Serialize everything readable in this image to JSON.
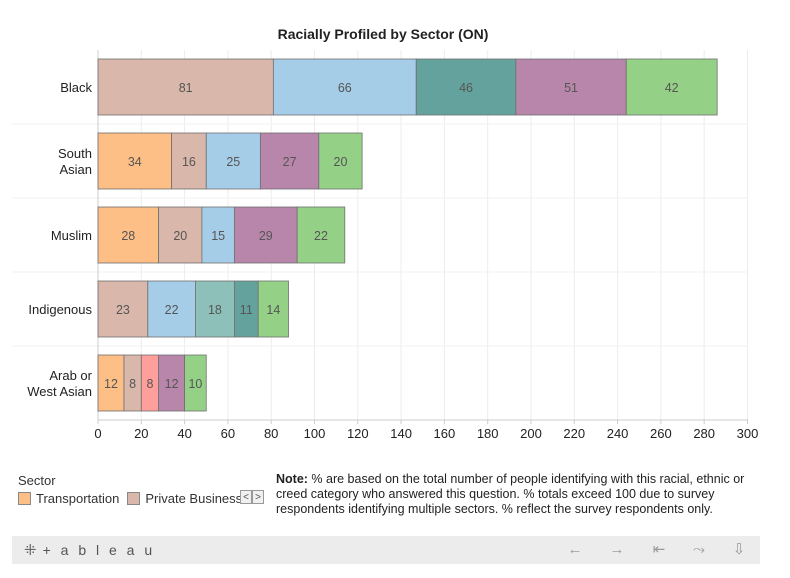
{
  "chart_data": {
    "type": "bar",
    "orientation": "horizontal",
    "stacked": true,
    "title": "Racially Profiled by Sector (ON)",
    "xlabel": "",
    "ylabel": "",
    "xlim": [
      0,
      300
    ],
    "x_ticks": [
      0,
      20,
      40,
      60,
      80,
      100,
      120,
      140,
      160,
      180,
      200,
      220,
      240,
      260,
      280,
      300
    ],
    "grid": "vertical",
    "categories": [
      {
        "name": "Black",
        "lines": [
          "Black"
        ]
      },
      {
        "name": "South Asian",
        "lines": [
          "South",
          "Asian"
        ]
      },
      {
        "name": "Muslim",
        "lines": [
          "Muslim"
        ]
      },
      {
        "name": "Indigenous",
        "lines": [
          "Indigenous"
        ]
      },
      {
        "name": "Arab or West Asian",
        "lines": [
          "Arab or",
          "West Asian"
        ]
      }
    ],
    "bars": [
      [
        {
          "value": 81,
          "color": "#d9b8ab"
        },
        {
          "value": 66,
          "color": "#a5cde8"
        },
        {
          "value": 46,
          "color": "#64a39d"
        },
        {
          "value": 51,
          "color": "#b886aa"
        },
        {
          "value": 42,
          "color": "#94d187"
        }
      ],
      [
        {
          "value": 34,
          "color": "#fdbf86"
        },
        {
          "value": 16,
          "color": "#d9b8ab"
        },
        {
          "value": 25,
          "color": "#a5cde8"
        },
        {
          "value": 27,
          "color": "#b886aa"
        },
        {
          "value": 20,
          "color": "#94d187"
        }
      ],
      [
        {
          "value": 28,
          "color": "#fdbf86"
        },
        {
          "value": 20,
          "color": "#d9b8ab"
        },
        {
          "value": 15,
          "color": "#a5cde8"
        },
        {
          "value": 29,
          "color": "#b886aa"
        },
        {
          "value": 22,
          "color": "#94d187"
        }
      ],
      [
        {
          "value": 23,
          "color": "#d9b8ab"
        },
        {
          "value": 22,
          "color": "#a5cde8"
        },
        {
          "value": 18,
          "color": "#8ec0ba"
        },
        {
          "value": 11,
          "color": "#64a39d"
        },
        {
          "value": 14,
          "color": "#94d187"
        }
      ],
      [
        {
          "value": 12,
          "color": "#fdbf86"
        },
        {
          "value": 8,
          "color": "#d9b8ab"
        },
        {
          "value": 8,
          "color": "#ff9f9b"
        },
        {
          "value": 12,
          "color": "#b886aa"
        },
        {
          "value": 10,
          "color": "#94d187"
        }
      ]
    ]
  },
  "legend": {
    "title": "Sector",
    "items": [
      {
        "label": "Transportation",
        "color": "#fdbf86"
      },
      {
        "label": "Private Business",
        "color": "#d9b8ab"
      }
    ],
    "prev_glyph": "<",
    "next_glyph": ">"
  },
  "note": {
    "label": "Note:",
    "text": " % are based on the total number of people identifying with this racial, ethnic or creed category who answered this question. % totals exceed 100 due to survey respondents identifying multiple sectors. % reflect the survey respondents only."
  },
  "toolbar": {
    "brand": "+ a b l e a u",
    "logo_glyph": "⁜",
    "undo_glyph": "←",
    "redo_glyph": "→",
    "revert_glyph": "⇤",
    "share_glyph": "⤳",
    "download_glyph": "⇩"
  }
}
